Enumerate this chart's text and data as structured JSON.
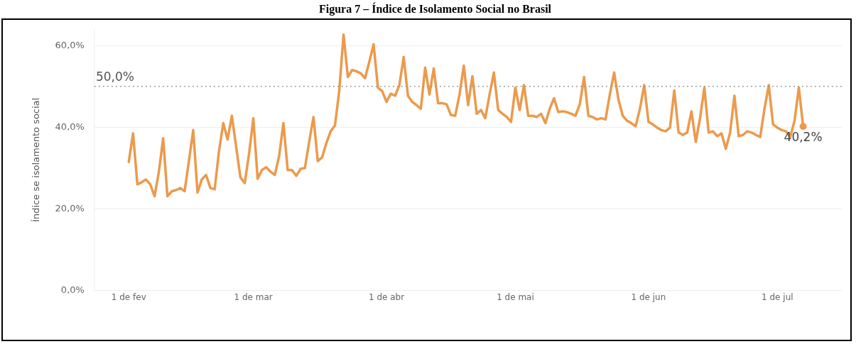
{
  "chart_data": {
    "type": "line",
    "title": "Figura 7 – Índice de Isolamento Social no Brasil",
    "ylabel": "Índice se isolamento social",
    "xlim": [
      "--01-24",
      "--07-16"
    ],
    "xticks": [
      {
        "value": "--02-01",
        "label": "1 de fev"
      },
      {
        "value": "--03-01",
        "label": "1 de mar"
      },
      {
        "value": "--04-01",
        "label": "1 de abr"
      },
      {
        "value": "--05-01",
        "label": "1 de mai"
      },
      {
        "value": "--06-01",
        "label": "1 de jun"
      },
      {
        "value": "--07-01",
        "label": "1 de jul"
      }
    ],
    "ylim": [
      0,
      64
    ],
    "yticks": [
      {
        "value": 0,
        "label": "0,0%"
      },
      {
        "value": 20,
        "label": "20,0%"
      },
      {
        "value": 40,
        "label": "40,0%"
      },
      {
        "value": 60,
        "label": "60,0%"
      }
    ],
    "grid": "y",
    "legend": false,
    "marker": "none",
    "line_style": "solid",
    "ref_lines": [
      {
        "axis": "y",
        "value": 50,
        "label": "50,0%",
        "color": "#9a9a9a",
        "line_style": "dotted"
      }
    ],
    "annotations": [
      {
        "text": "40,2%",
        "x": "--07-07",
        "y": 40.2
      }
    ],
    "x": [
      "--02-01",
      "--02-02",
      "--02-03",
      "--02-04",
      "--02-05",
      "--02-06",
      "--02-07",
      "--02-08",
      "--02-09",
      "--02-10",
      "--02-11",
      "--02-12",
      "--02-13",
      "--02-14",
      "--02-15",
      "--02-16",
      "--02-17",
      "--02-18",
      "--02-19",
      "--02-20",
      "--02-21",
      "--02-22",
      "--02-23",
      "--02-24",
      "--02-25",
      "--02-26",
      "--02-27",
      "--02-28",
      "--02-29",
      "--03-01",
      "--03-02",
      "--03-03",
      "--03-04",
      "--03-05",
      "--03-06",
      "--03-07",
      "--03-08",
      "--03-09",
      "--03-10",
      "--03-11",
      "--03-12",
      "--03-13",
      "--03-14",
      "--03-15",
      "--03-16",
      "--03-17",
      "--03-18",
      "--03-19",
      "--03-20",
      "--03-21",
      "--03-22",
      "--03-23",
      "--03-24",
      "--03-25",
      "--03-26",
      "--03-27",
      "--03-28",
      "--03-29",
      "--03-30",
      "--03-31",
      "--04-01",
      "--04-02",
      "--04-03",
      "--04-04",
      "--04-05",
      "--04-06",
      "--04-07",
      "--04-08",
      "--04-09",
      "--04-10",
      "--04-11",
      "--04-12",
      "--04-13",
      "--04-14",
      "--04-15",
      "--04-16",
      "--04-17",
      "--04-18",
      "--04-19",
      "--04-20",
      "--04-21",
      "--04-22",
      "--04-23",
      "--04-24",
      "--04-25",
      "--04-26",
      "--04-27",
      "--04-28",
      "--04-29",
      "--04-30",
      "--05-01",
      "--05-02",
      "--05-03",
      "--05-04",
      "--05-05",
      "--05-06",
      "--05-07",
      "--05-08",
      "--05-09",
      "--05-10",
      "--05-11",
      "--05-12",
      "--05-13",
      "--05-14",
      "--05-15",
      "--05-16",
      "--05-17",
      "--05-18",
      "--05-19",
      "--05-20",
      "--05-21",
      "--05-22",
      "--05-23",
      "--05-24",
      "--05-25",
      "--05-26",
      "--05-27",
      "--05-28",
      "--05-29",
      "--05-30",
      "--05-31",
      "--06-01",
      "--06-02",
      "--06-03",
      "--06-04",
      "--06-05",
      "--06-06",
      "--06-07",
      "--06-08",
      "--06-09",
      "--06-10",
      "--06-11",
      "--06-12",
      "--06-13",
      "--06-14",
      "--06-15",
      "--06-16",
      "--06-17",
      "--06-18",
      "--06-19",
      "--06-20",
      "--06-21",
      "--06-22",
      "--06-23",
      "--06-24",
      "--06-25",
      "--06-26",
      "--06-27",
      "--06-28",
      "--06-29",
      "--06-30",
      "--07-01",
      "--07-02",
      "--07-03",
      "--07-04",
      "--07-05",
      "--07-06",
      "--07-07"
    ],
    "series": [
      {
        "color": "#eb9a4c",
        "values": [
          31.5,
          38.5,
          26.0,
          26.5,
          27.2,
          26.0,
          23.1,
          29.0,
          37.3,
          23.1,
          24.3,
          24.6,
          25.1,
          24.3,
          31.7,
          39.3,
          24.0,
          27.2,
          28.3,
          25.1,
          24.8,
          34.1,
          41.0,
          37.0,
          42.8,
          35.2,
          27.7,
          26.3,
          33.5,
          42.2,
          27.4,
          29.5,
          30.2,
          29.1,
          28.3,
          32.9,
          41.0,
          29.5,
          29.5,
          28.1,
          29.8,
          30.0,
          36.4,
          42.5,
          31.7,
          32.6,
          36.1,
          39.0,
          40.4,
          48.9,
          62.7,
          52.3,
          54.0,
          53.7,
          53.2,
          52.0,
          56.0,
          60.3,
          49.7,
          48.8,
          46.2,
          48.2,
          47.7,
          50.3,
          57.2,
          47.7,
          46.2,
          45.4,
          44.5,
          54.6,
          48.0,
          54.4,
          45.9,
          45.9,
          45.6,
          43.0,
          42.8,
          48.0,
          55.1,
          45.4,
          52.5,
          43.3,
          44.2,
          42.2,
          48.0,
          53.4,
          44.2,
          43.3,
          42.5,
          41.3,
          49.7,
          44.2,
          50.3,
          42.8,
          42.8,
          42.5,
          43.3,
          41.0,
          44.5,
          47.1,
          43.7,
          43.9,
          43.7,
          43.3,
          42.8,
          45.6,
          52.3,
          42.8,
          42.5,
          41.9,
          42.2,
          41.9,
          48.0,
          53.4,
          46.8,
          42.8,
          41.6,
          41.0,
          40.2,
          44.5,
          50.3,
          41.3,
          40.7,
          39.9,
          39.3,
          39.0,
          39.9,
          49.0,
          38.7,
          38.1,
          38.7,
          43.9,
          36.4,
          42.2,
          49.7,
          38.7,
          39.0,
          37.8,
          38.5,
          34.7,
          38.7,
          47.7,
          37.8,
          38.1,
          39.0,
          38.7,
          38.1,
          37.6,
          44.5,
          50.3,
          40.7,
          39.9,
          39.3,
          39.0,
          37.6,
          41.6,
          49.7,
          40.2
        ]
      }
    ]
  }
}
